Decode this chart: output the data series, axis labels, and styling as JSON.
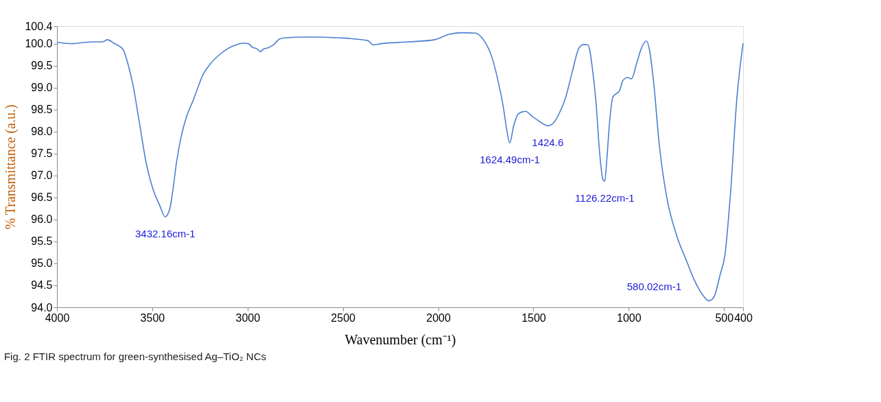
{
  "chart_data": {
    "type": "line",
    "title": "Fig. 2  FTIR spectrum for green-synthesised Ag–TiO₂ NCs",
    "xlabel": "Wavenumber (cm⁻¹)",
    "ylabel": "% Transmittance (a.u.)",
    "xlim": [
      4000,
      400
    ],
    "xticks": [
      4000,
      3500,
      3000,
      2500,
      2000,
      1500,
      1000,
      500,
      400
    ],
    "ylim": [
      94.0,
      100.4
    ],
    "yticks": [
      {
        "value": 94.0,
        "label": "94.0"
      },
      {
        "value": 94.5,
        "label": "94.5"
      },
      {
        "value": 95.0,
        "label": "95.0"
      },
      {
        "value": 95.5,
        "label": "95.5"
      },
      {
        "value": 96.0,
        "label": "96.0"
      },
      {
        "value": 96.5,
        "label": "96.5"
      },
      {
        "value": 97.0,
        "label": "97.0"
      },
      {
        "value": 97.5,
        "label": "97.5"
      },
      {
        "value": 98.0,
        "label": "98.0"
      },
      {
        "value": 98.5,
        "label": "98.5"
      },
      {
        "value": 99.0,
        "label": "99.0"
      },
      {
        "value": 99.5,
        "label": "99.5"
      },
      {
        "value": 100.0,
        "label": "100.0"
      },
      {
        "value": 100.4,
        "label": "100.4"
      }
    ],
    "grid": false,
    "line_style": "solid",
    "marker": "none",
    "series": [
      {
        "color": "#4a7fd0",
        "x": [
          4000,
          3919,
          3849,
          3813,
          3760,
          3736,
          3701,
          3672,
          3651,
          3627,
          3602,
          3567,
          3532,
          3496,
          3461,
          3432,
          3408,
          3391,
          3373,
          3348,
          3320,
          3285,
          3232,
          3197,
          3144,
          3074,
          3021,
          2996,
          2975,
          2950,
          2933,
          2915,
          2890,
          2862,
          2834,
          2809,
          2686,
          2510,
          2369,
          2341,
          2299,
          2158,
          2017,
          1946,
          1876,
          1805,
          1770,
          1717,
          1682,
          1658,
          1640,
          1624,
          1605,
          1577,
          1541,
          1506,
          1478,
          1443,
          1425,
          1390,
          1365,
          1330,
          1295,
          1260,
          1235,
          1214,
          1189,
          1171,
          1154,
          1136,
          1126,
          1115,
          1101,
          1083,
          1048,
          1031,
          1006,
          985,
          960,
          932,
          907,
          890,
          872,
          837,
          802,
          749,
          696,
          661,
          615,
          580,
          555,
          520,
          495,
          467,
          432,
          400
        ],
        "values": [
          100.03,
          100.0,
          100.03,
          100.04,
          100.04,
          100.09,
          100.01,
          99.94,
          99.85,
          99.53,
          99.08,
          98.19,
          97.29,
          96.69,
          96.32,
          96.06,
          96.24,
          96.69,
          97.29,
          97.89,
          98.34,
          98.71,
          99.31,
          99.53,
          99.76,
          99.95,
          100.01,
          100.0,
          99.92,
          99.88,
          99.82,
          99.88,
          99.91,
          99.98,
          100.1,
          100.13,
          100.15,
          100.13,
          100.07,
          99.97,
          100.0,
          100.04,
          100.09,
          100.21,
          100.25,
          100.24,
          100.13,
          99.68,
          99.08,
          98.56,
          98.04,
          97.74,
          98.11,
          98.41,
          98.46,
          98.34,
          98.26,
          98.16,
          98.13,
          98.22,
          98.41,
          98.79,
          99.38,
          99.91,
          99.98,
          99.97,
          99.38,
          98.63,
          97.59,
          96.92,
          96.87,
          97.36,
          98.19,
          98.79,
          98.93,
          99.16,
          99.23,
          99.2,
          99.53,
          99.91,
          100.06,
          99.83,
          99.23,
          97.59,
          96.54,
          95.64,
          95.05,
          94.67,
          94.3,
          94.15,
          94.22,
          94.75,
          95.2,
          96.54,
          98.79,
          100.01
        ]
      }
    ],
    "annotations": [
      {
        "text": "3432.16cm-1",
        "x": 3432,
        "y": 96.06
      },
      {
        "text": "1624.49cm-1",
        "x": 1624,
        "y": 97.74
      },
      {
        "text": "1424.6",
        "x": 1425,
        "y": 98.13
      },
      {
        "text": "1126.22cm-1",
        "x": 1126,
        "y": 96.87
      },
      {
        "text": "580.02cm-1",
        "x": 580,
        "y": 94.15
      }
    ]
  }
}
